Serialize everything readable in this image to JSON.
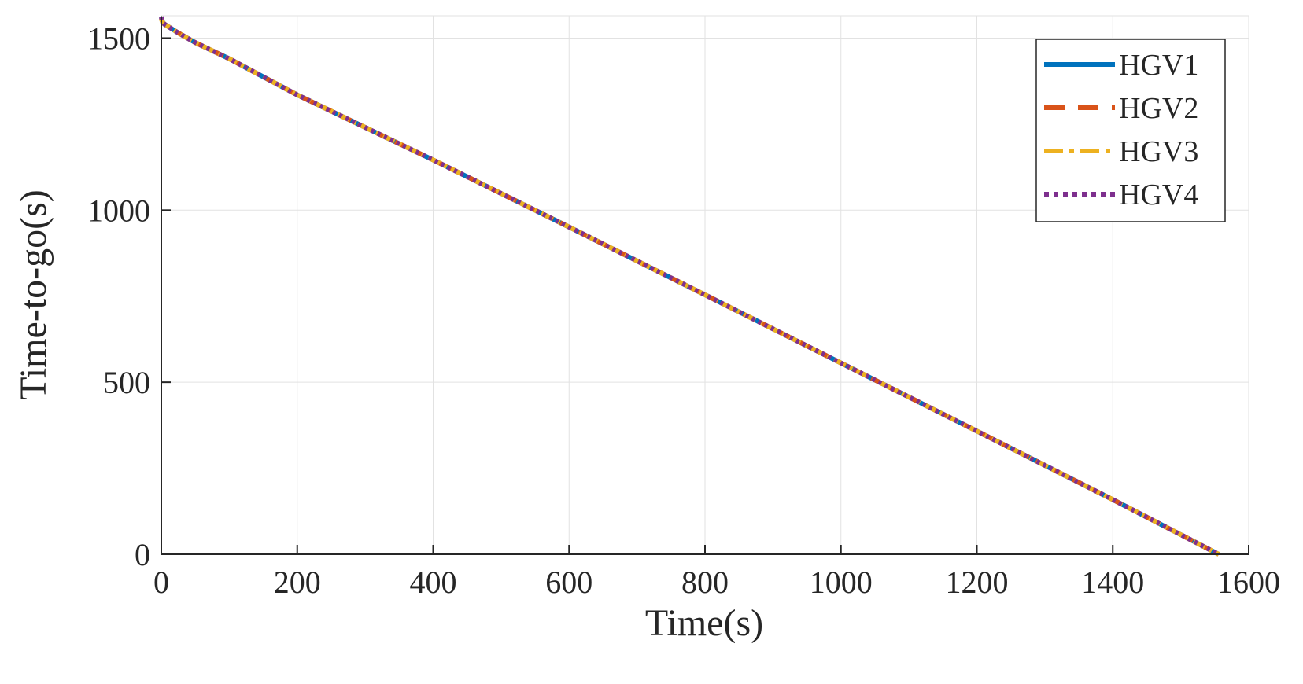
{
  "chart_data": {
    "type": "line",
    "title": "",
    "xlabel": "Time(s)",
    "ylabel": "Time-to-go(s)",
    "xlim": [
      0,
      1600
    ],
    "ylim": [
      0,
      1500
    ],
    "ylim_plot_top": 1565,
    "xticks": [
      0,
      200,
      400,
      600,
      800,
      1000,
      1200,
      1400,
      1600
    ],
    "yticks": [
      0,
      500,
      1000,
      1500
    ],
    "xtick_labels": [
      "0",
      "200",
      "400",
      "600",
      "800",
      "1000",
      "1200",
      "1400",
      "1600"
    ],
    "ytick_labels": [
      "0",
      "500",
      "1000",
      "1500"
    ],
    "grid": true,
    "legend_position": "top-right",
    "series": [
      {
        "name": "HGV1",
        "color": "#0072BD",
        "style": "solid",
        "x": [
          0,
          2,
          5,
          25,
          50,
          100,
          200,
          400,
          600,
          800,
          1000,
          1200,
          1400,
          1556
        ],
        "y": [
          1560,
          1546,
          1540,
          1515,
          1487,
          1440,
          1335,
          1146,
          951,
          754,
          556,
          358,
          159,
          0
        ]
      },
      {
        "name": "HGV2",
        "color": "#D95319",
        "style": "dashed",
        "x": [
          0,
          2,
          5,
          25,
          50,
          100,
          200,
          400,
          600,
          800,
          1000,
          1200,
          1400,
          1556
        ],
        "y": [
          1558,
          1545,
          1540,
          1515,
          1487,
          1440,
          1335,
          1146,
          951,
          754,
          556,
          358,
          159,
          0
        ]
      },
      {
        "name": "HGV3",
        "color": "#EDB120",
        "style": "dashdot",
        "x": [
          0,
          2,
          5,
          25,
          50,
          100,
          200,
          400,
          600,
          800,
          1000,
          1200,
          1400,
          1556
        ],
        "y": [
          1555,
          1545,
          1540,
          1515,
          1487,
          1440,
          1335,
          1146,
          951,
          754,
          556,
          358,
          159,
          0
        ]
      },
      {
        "name": "HGV4",
        "color": "#7E2F8E",
        "style": "dotted",
        "x": [
          0,
          2,
          5,
          25,
          50,
          100,
          200,
          400,
          600,
          800,
          1000,
          1200,
          1400,
          1556
        ],
        "y": [
          1562,
          1546,
          1540,
          1515,
          1487,
          1440,
          1335,
          1146,
          951,
          754,
          556,
          358,
          159,
          0
        ]
      }
    ]
  }
}
